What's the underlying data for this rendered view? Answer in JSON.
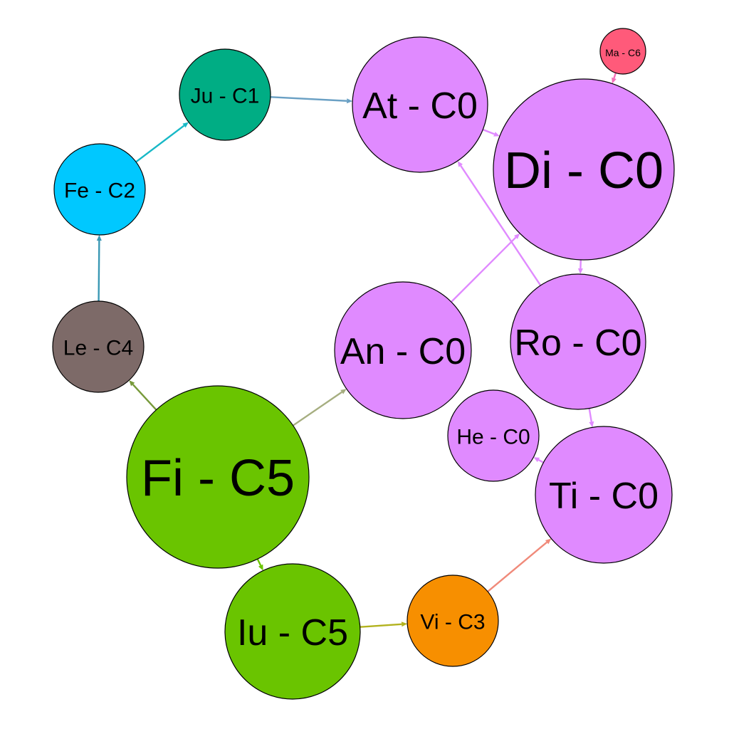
{
  "nodes": [
    {
      "id": "ma",
      "label": "Ma - C6",
      "color": "#FF5A7A"
    },
    {
      "id": "ju",
      "label": "Ju - C1",
      "color": "#00AD84"
    },
    {
      "id": "at",
      "label": "At - C0",
      "color": "#E08AFF"
    },
    {
      "id": "di",
      "label": "Di - C0",
      "color": "#E08AFF"
    },
    {
      "id": "fe",
      "label": "Fe - C2",
      "color": "#00C8FF"
    },
    {
      "id": "le",
      "label": "Le - C4",
      "color": "#7D6A68"
    },
    {
      "id": "an",
      "label": "An - C0",
      "color": "#E08AFF"
    },
    {
      "id": "ro",
      "label": "Ro - C0",
      "color": "#E08AFF"
    },
    {
      "id": "he",
      "label": "He - C0",
      "color": "#E08AFF"
    },
    {
      "id": "fi",
      "label": "Fi - C5",
      "color": "#6AC400"
    },
    {
      "id": "ti",
      "label": "Ti - C0",
      "color": "#E08AFF"
    },
    {
      "id": "iu",
      "label": "Iu - C5",
      "color": "#6AC400"
    },
    {
      "id": "vi",
      "label": "Vi - C3",
      "color": "#F78F00"
    }
  ],
  "edges": [
    {
      "from": "ma",
      "to": "di",
      "color": "#F46FB8"
    },
    {
      "from": "ju",
      "to": "at",
      "color": "#6AA0C4"
    },
    {
      "from": "fe",
      "to": "ju",
      "color": "#17B8C6"
    },
    {
      "from": "le",
      "to": "fe",
      "color": "#3A98B4"
    },
    {
      "from": "fi",
      "to": "le",
      "color": "#779A3A"
    },
    {
      "from": "fi",
      "to": "an",
      "color": "#A6AE80"
    },
    {
      "from": "fi",
      "to": "iu",
      "color": "#6AC400"
    },
    {
      "from": "iu",
      "to": "vi",
      "color": "#B2B21E"
    },
    {
      "from": "vi",
      "to": "ti",
      "color": "#F08A7A"
    },
    {
      "from": "at",
      "to": "di",
      "color": "#E08AFF"
    },
    {
      "from": "di",
      "to": "ro",
      "color": "#E08AFF"
    },
    {
      "from": "an",
      "to": "di",
      "color": "#E08AFF"
    },
    {
      "from": "ro",
      "to": "at",
      "color": "#E08AFF"
    },
    {
      "from": "ro",
      "to": "ti",
      "color": "#E08AFF"
    },
    {
      "from": "ti",
      "to": "he",
      "color": "#E08AFF"
    }
  ]
}
